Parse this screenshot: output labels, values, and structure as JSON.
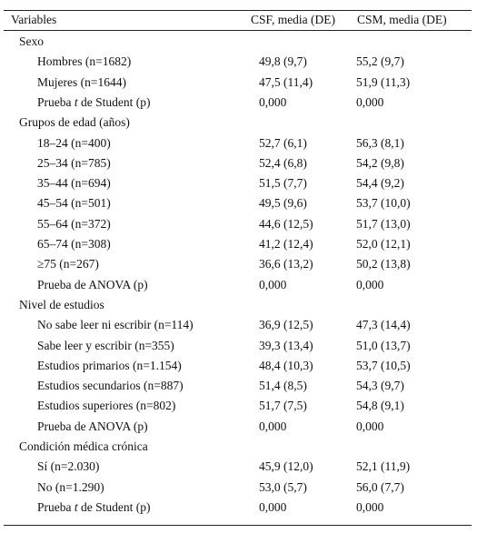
{
  "table": {
    "header": [
      "Variables",
      "CSF, media (DE)",
      "CSM, media (DE)"
    ],
    "sections": [
      {
        "title": "Sexo",
        "rows": [
          [
            [
              "Hombres (n=1682)"
            ],
            "49,8 (9,7)",
            "55,2 (9,7)"
          ],
          [
            [
              "Mujeres (n=1644)"
            ],
            "47,5 (11,4)",
            "51,9 (11,3)"
          ],
          [
            [
              "Prueba ",
              "t",
              " de Student (p)"
            ],
            "0,000",
            "0,000"
          ]
        ]
      },
      {
        "title": "Grupos de edad (años)",
        "rows": [
          [
            [
              "18–24 (n=400)"
            ],
            "52,7 (6,1)",
            "56,3 (8,1)"
          ],
          [
            [
              "25–34 (n=785)"
            ],
            "52,4 (6,8)",
            "54,2 (9,8)"
          ],
          [
            [
              "35–44 (n=694)"
            ],
            "51,5 (7,7)",
            "54,4 (9,2)"
          ],
          [
            [
              "45–54 (n=501)"
            ],
            "49,5 (9,6)",
            "53,7 (10,0)"
          ],
          [
            [
              "55–64 (n=372)"
            ],
            "44,6 (12,5)",
            "51,7 (13,0)"
          ],
          [
            [
              "65–74 (n=308)"
            ],
            "41,2 (12,4)",
            "52,0 (12,1)"
          ],
          [
            [
              "≥75 (n=267)"
            ],
            "36,6 (13,2)",
            "50,2 (13,8)"
          ],
          [
            [
              "Prueba de ANOVA (p)"
            ],
            "0,000",
            "0,000"
          ]
        ]
      },
      {
        "title": "Nivel de estudios",
        "rows": [
          [
            [
              "No sabe leer ni escribir (n=114)"
            ],
            "36,9 (12,5)",
            "47,3 (14,4)"
          ],
          [
            [
              "Sabe leer y escribir (n=355)"
            ],
            "39,3 (13,4)",
            "51,0 (13,7)"
          ],
          [
            [
              "Estudios primarios (n=1.154)"
            ],
            "48,4 (10,3)",
            "53,7 (10,5)"
          ],
          [
            [
              "Estudios secundarios (n=887)"
            ],
            "51,4 (8,5)",
            "54,3 (9,7)"
          ],
          [
            [
              "Estudios superiores (n=802)"
            ],
            "51,7 (7,5)",
            "54,8 (9,1)"
          ],
          [
            [
              "Prueba de ANOVA (p)"
            ],
            "0,000",
            "0,000"
          ]
        ]
      },
      {
        "title": "Condición médica crónica",
        "rows": [
          [
            [
              "Sí (n=2.030)"
            ],
            "45,9 (12,0)",
            "52,1 (11,9)"
          ],
          [
            [
              "No (n=1.290)"
            ],
            "53,0 (5,7)",
            "56,0 (7,7)"
          ],
          [
            [
              "Prueba ",
              "t",
              " de Student (p)"
            ],
            "0,000",
            "0,000"
          ]
        ]
      }
    ]
  }
}
